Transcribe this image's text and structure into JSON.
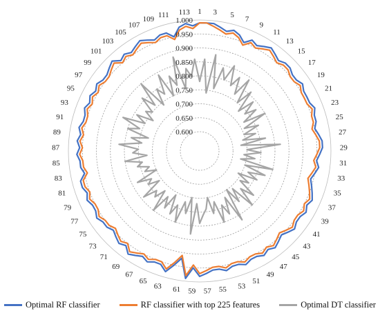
{
  "chart_data": {
    "type": "radar",
    "r_range": [
      0.6,
      1.0
    ],
    "r_ticks": [
      "0.600",
      "0.650",
      "0.700",
      "0.750",
      "0.800",
      "0.850",
      "0.900",
      "0.950",
      "1.000"
    ],
    "spokes": 114,
    "spoke_labels": [
      "1",
      "3",
      "5",
      "7",
      "9",
      "11",
      "13",
      "15",
      "17",
      "19",
      "21",
      "23",
      "25",
      "27",
      "29",
      "31",
      "33",
      "35",
      "37",
      "39",
      "41",
      "43",
      "45",
      "47",
      "49",
      "51",
      "53",
      "55",
      "57",
      "59",
      "61",
      "63",
      "65",
      "67",
      "69",
      "71",
      "73",
      "75",
      "77",
      "79",
      "81",
      "83",
      "85",
      "87",
      "89",
      "91",
      "93",
      "95",
      "97",
      "99",
      "101",
      "103",
      "105",
      "107",
      "109",
      "111",
      "113"
    ],
    "grid": true,
    "legend_position": "bottom",
    "series": [
      {
        "name": "Optimal RF classifier",
        "color": "#4472C4",
        "values": [
          0.99,
          0.99,
          0.99,
          0.98,
          0.97,
          0.98,
          0.97,
          0.95,
          0.97,
          0.96,
          0.97,
          0.98,
          0.97,
          0.96,
          0.97,
          0.97,
          0.96,
          0.96,
          0.97,
          0.96,
          0.96,
          0.96,
          0.97,
          0.96,
          0.96,
          0.95,
          0.96,
          0.97,
          0.97,
          0.96,
          0.95,
          0.96,
          0.95,
          0.94,
          0.95,
          0.96,
          0.97,
          0.96,
          0.97,
          0.96,
          0.96,
          0.97,
          0.96,
          0.95,
          0.96,
          0.97,
          0.96,
          0.97,
          0.96,
          0.96,
          0.97,
          0.96,
          0.96,
          0.97,
          0.96,
          0.96,
          0.97,
          0.98,
          0.95,
          0.99,
          0.92,
          0.95,
          0.98,
          0.96,
          0.96,
          0.97,
          0.96,
          0.97,
          0.98,
          0.96,
          0.97,
          0.96,
          0.95,
          0.96,
          0.96,
          0.97,
          0.96,
          0.96,
          0.97,
          0.96,
          0.97,
          0.97,
          0.95,
          0.96,
          0.96,
          0.97,
          0.96,
          0.97,
          0.96,
          0.97,
          0.96,
          0.96,
          0.97,
          0.96,
          0.97,
          0.96,
          0.97,
          0.96,
          0.96,
          0.97,
          0.98,
          0.96,
          0.97,
          0.96,
          0.97,
          0.98,
          0.97,
          0.96,
          0.97,
          0.97,
          0.95,
          0.98,
          0.99,
          0.98
        ]
      },
      {
        "name": "RF classifier with top 225 features",
        "color": "#ED7D31",
        "values": [
          0.99,
          0.99,
          0.98,
          0.97,
          0.96,
          0.97,
          0.96,
          0.94,
          0.96,
          0.95,
          0.96,
          0.97,
          0.96,
          0.95,
          0.96,
          0.96,
          0.95,
          0.95,
          0.96,
          0.95,
          0.95,
          0.95,
          0.96,
          0.95,
          0.95,
          0.94,
          0.95,
          0.96,
          0.96,
          0.95,
          0.94,
          0.95,
          0.94,
          0.93,
          0.94,
          0.95,
          0.96,
          0.95,
          0.96,
          0.95,
          0.95,
          0.96,
          0.95,
          0.94,
          0.95,
          0.96,
          0.95,
          0.96,
          0.95,
          0.95,
          0.96,
          0.95,
          0.95,
          0.96,
          0.95,
          0.95,
          0.96,
          0.97,
          0.94,
          0.98,
          0.91,
          0.94,
          0.97,
          0.95,
          0.95,
          0.96,
          0.95,
          0.96,
          0.97,
          0.95,
          0.96,
          0.95,
          0.94,
          0.95,
          0.95,
          0.96,
          0.95,
          0.95,
          0.96,
          0.95,
          0.96,
          0.96,
          0.94,
          0.95,
          0.95,
          0.96,
          0.95,
          0.96,
          0.95,
          0.96,
          0.95,
          0.95,
          0.96,
          0.95,
          0.96,
          0.95,
          0.96,
          0.95,
          0.95,
          0.96,
          0.97,
          0.95,
          0.96,
          0.95,
          0.96,
          0.97,
          0.96,
          0.95,
          0.96,
          0.96,
          0.94,
          0.97,
          0.98,
          0.97
        ]
      },
      {
        "name": "Optimal DT classifier",
        "color": "#A5A5A5",
        "values": [
          0.78,
          0.86,
          0.74,
          0.88,
          0.76,
          0.84,
          0.8,
          0.86,
          0.79,
          0.83,
          0.77,
          0.84,
          0.75,
          0.81,
          0.73,
          0.79,
          0.74,
          0.78,
          0.72,
          0.8,
          0.71,
          0.76,
          0.7,
          0.74,
          0.69,
          0.77,
          0.68,
          0.82,
          0.7,
          0.75,
          0.69,
          0.73,
          0.68,
          0.8,
          0.7,
          0.78,
          0.72,
          0.76,
          0.69,
          0.74,
          0.71,
          0.78,
          0.73,
          0.8,
          0.71,
          0.76,
          0.7,
          0.82,
          0.72,
          0.78,
          0.74,
          0.8,
          0.72,
          0.76,
          0.7,
          0.74,
          0.76,
          0.79,
          0.72,
          0.83,
          0.7,
          0.76,
          0.72,
          0.8,
          0.74,
          0.78,
          0.71,
          0.77,
          0.73,
          0.8,
          0.72,
          0.76,
          0.74,
          0.79,
          0.71,
          0.75,
          0.73,
          0.78,
          0.7,
          0.74,
          0.72,
          0.76,
          0.74,
          0.8,
          0.72,
          0.77,
          0.75,
          0.82,
          0.74,
          0.78,
          0.72,
          0.8,
          0.76,
          0.83,
          0.75,
          0.79,
          0.73,
          0.77,
          0.75,
          0.81,
          0.76,
          0.85,
          0.74,
          0.8,
          0.77,
          0.84,
          0.75,
          0.82,
          0.78,
          0.88,
          0.76,
          0.83,
          0.8,
          0.86
        ]
      }
    ]
  },
  "legend": {
    "items": [
      {
        "label": "Optimal RF classifier",
        "color": "#4472C4"
      },
      {
        "label": "RF classifier with top 225 features",
        "color": "#ED7D31"
      },
      {
        "label": "Optimal DT classifier",
        "color": "#A5A5A5"
      }
    ]
  }
}
